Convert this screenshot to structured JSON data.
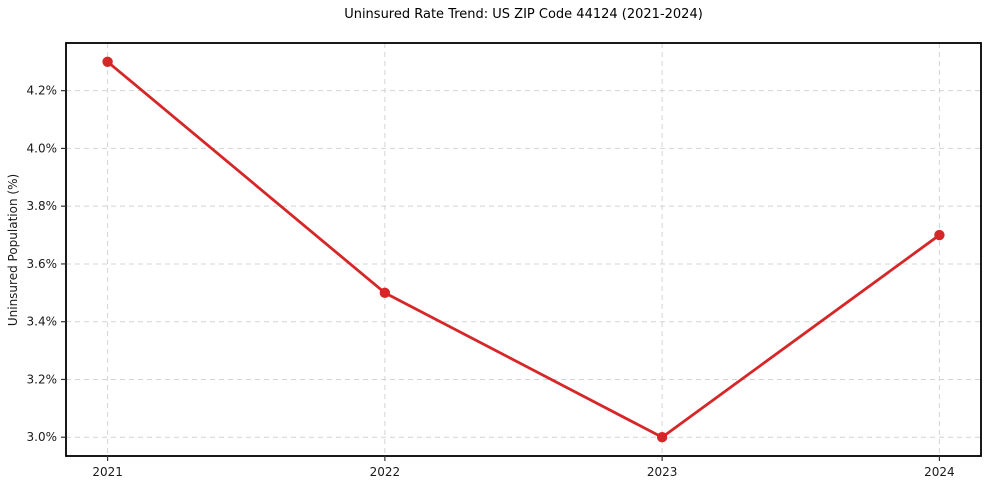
{
  "chart_data": {
    "type": "line",
    "title": "Uninsured Rate Trend: US ZIP Code 44124 (2021-2024)",
    "xlabel": "",
    "ylabel": "Uninsured Population (%)",
    "x": [
      2021,
      2022,
      2023,
      2024
    ],
    "values": [
      4.3,
      3.5,
      3.0,
      3.7
    ],
    "xlim": [
      2020.85,
      2024.15
    ],
    "ylim": [
      2.935,
      4.365
    ],
    "xticks": [
      2021,
      2022,
      2023,
      2024
    ],
    "xtick_labels": [
      "2021",
      "2022",
      "2023",
      "2024"
    ],
    "yticks": [
      3.0,
      3.2,
      3.4,
      3.6,
      3.8,
      4.0,
      4.2
    ],
    "ytick_labels": [
      "3.0%",
      "3.2%",
      "3.4%",
      "3.6%",
      "3.8%",
      "4.0%",
      "4.2%"
    ],
    "grid": true,
    "grid_style": "dashed",
    "legend_position": "none",
    "line_color": "#d62728",
    "marker": "circle",
    "marker_color": "#d62728",
    "grid_color": "#d4d4d4",
    "frame_color": "#000000",
    "tick_color": "#333333",
    "text_color": "#1a1a1a"
  }
}
